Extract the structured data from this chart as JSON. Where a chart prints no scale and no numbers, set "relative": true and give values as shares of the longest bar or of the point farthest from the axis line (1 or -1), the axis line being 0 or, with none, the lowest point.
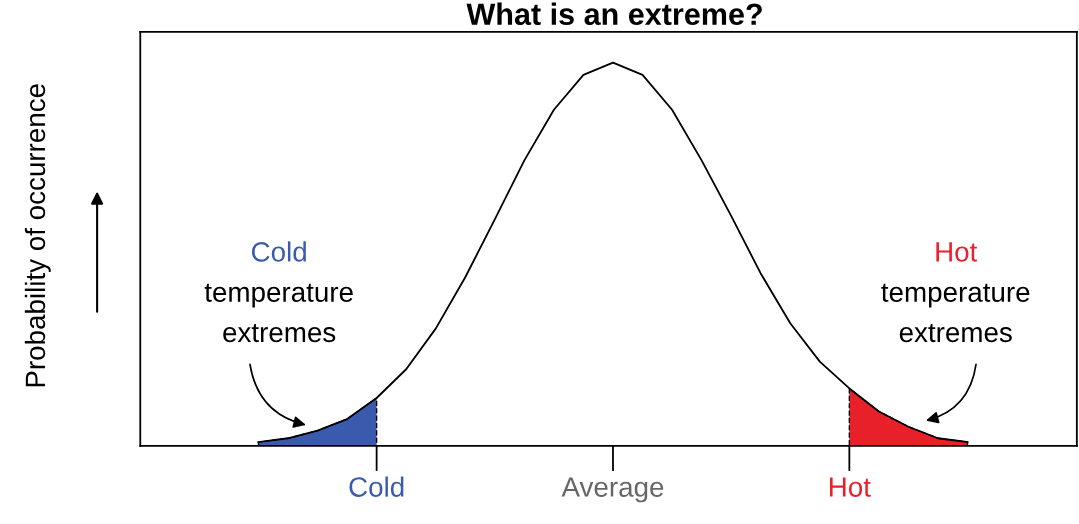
{
  "chart_data": {
    "type": "line",
    "title": "What is an extreme?",
    "ylabel": "Probability of occurrence",
    "relative": true,
    "grid": false,
    "marker": "none",
    "line_style": "solid",
    "categories": [
      null,
      null,
      null,
      null,
      null,
      null,
      null,
      null,
      "Cold",
      null,
      null,
      null,
      null,
      null,
      null,
      null,
      "Average",
      null,
      null,
      null,
      null,
      null,
      null,
      null,
      "Hot",
      null,
      null,
      null,
      null,
      null,
      null,
      null
    ],
    "series": [
      {
        "color": "#000000",
        "values": [
          null,
          null,
          null,
          null,
          0.01,
          0.02,
          0.04,
          0.07,
          0.125,
          0.2,
          0.306,
          0.44,
          0.591,
          0.745,
          0.877,
          0.968,
          1,
          0.968,
          0.877,
          0.745,
          0.6,
          0.45,
          0.32,
          0.22,
          0.15,
          0.09,
          0.05,
          0.02,
          0.01,
          null,
          null,
          null
        ]
      },
      {
        "type": "area",
        "color": "#3a5bad",
        "values": [
          null,
          null,
          null,
          null,
          0.01,
          0.02,
          0.04,
          0.07,
          0.125,
          null,
          null,
          null,
          null,
          null,
          null,
          null,
          null,
          null,
          null,
          null,
          null,
          null,
          null,
          null,
          null,
          null,
          null,
          null,
          null,
          null,
          null,
          null
        ]
      },
      {
        "type": "area",
        "color": "#e8202a",
        "values": [
          null,
          null,
          null,
          null,
          null,
          null,
          null,
          null,
          null,
          null,
          null,
          null,
          null,
          null,
          null,
          null,
          null,
          null,
          null,
          null,
          null,
          null,
          null,
          null,
          0.15,
          0.09,
          0.05,
          0.02,
          0.01,
          null,
          null,
          null
        ]
      }
    ],
    "annotations": [
      "Cold\ntemperature\nextremes",
      "Hot\ntemperature\nextremes"
    ]
  }
}
